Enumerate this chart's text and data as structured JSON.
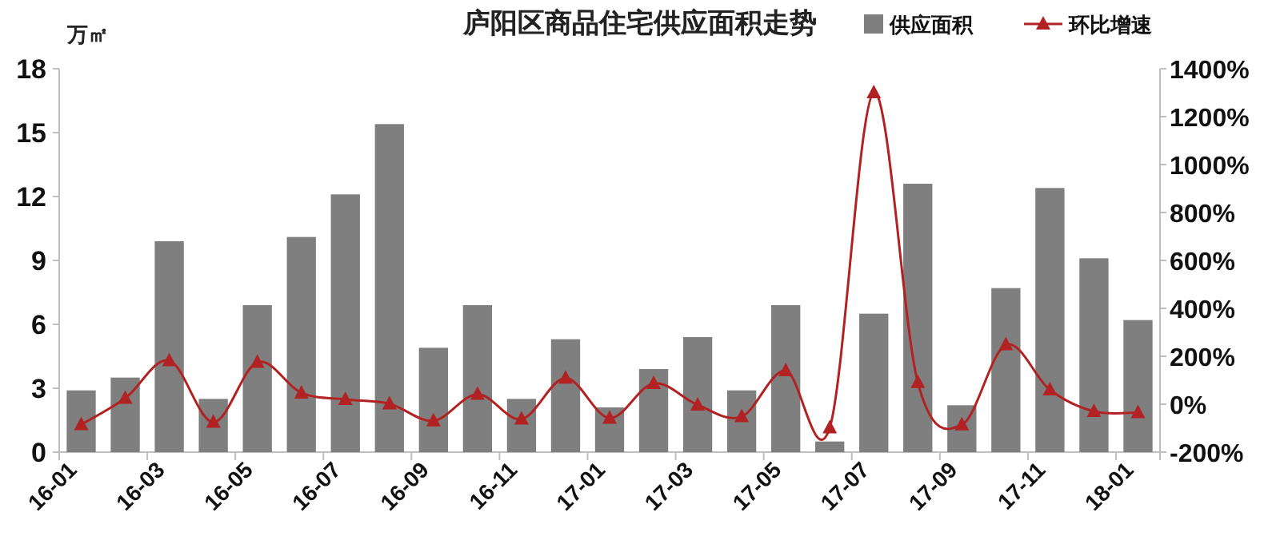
{
  "chart_data": {
    "type": "bar",
    "title": "庐阳区商品住宅供应面积走势",
    "ylabel": "万㎡",
    "categories": [
      "16-01",
      null,
      "16-03",
      null,
      "16-05",
      null,
      "16-07",
      null,
      "16-09",
      null,
      "16-11",
      null,
      "17-01",
      null,
      "17-03",
      null,
      "17-05",
      null,
      "17-07",
      null,
      "17-09",
      null,
      "17-11",
      null,
      "18-01"
    ],
    "series": [
      {
        "name": "供应面积",
        "color": "#7f7f7f",
        "values": [
          2.9,
          3.5,
          9.9,
          2.5,
          6.9,
          10.1,
          12.1,
          15.4,
          4.9,
          6.9,
          2.5,
          5.3,
          2.1,
          3.9,
          5.4,
          2.9,
          6.9,
          0.5,
          6.5,
          12.6,
          2.2,
          7.7,
          12.4,
          9.1,
          6.2
        ]
      },
      {
        "name": "环比增速",
        "type": "line",
        "axis": "y2",
        "color": "#b22222",
        "marker": "triangle",
        "values": [
          -85,
          25,
          182,
          -75,
          175,
          47,
          20,
          2,
          -69,
          42,
          -62,
          109,
          -58,
          87,
          -3,
          -52,
          140,
          -98,
          1300,
          91,
          -86,
          248,
          60,
          -30,
          -35
        ]
      }
    ],
    "ylim": [
      0,
      18
    ],
    "yticks": [
      0,
      3,
      6,
      9,
      12,
      15,
      18
    ],
    "y2lim": [
      -200,
      1400
    ],
    "y2ticks": [
      {
        "value": -200,
        "label": "-200%"
      },
      {
        "value": 0,
        "label": "0%"
      },
      {
        "value": 200,
        "label": "200%"
      },
      {
        "value": 400,
        "label": "400%"
      },
      {
        "value": 600,
        "label": "600%"
      },
      {
        "value": 800,
        "label": "800%"
      },
      {
        "value": 1000,
        "label": "1000%"
      },
      {
        "value": 1200,
        "label": "1200%"
      },
      {
        "value": 1400,
        "label": "1400%"
      }
    ],
    "legend": "top right"
  }
}
